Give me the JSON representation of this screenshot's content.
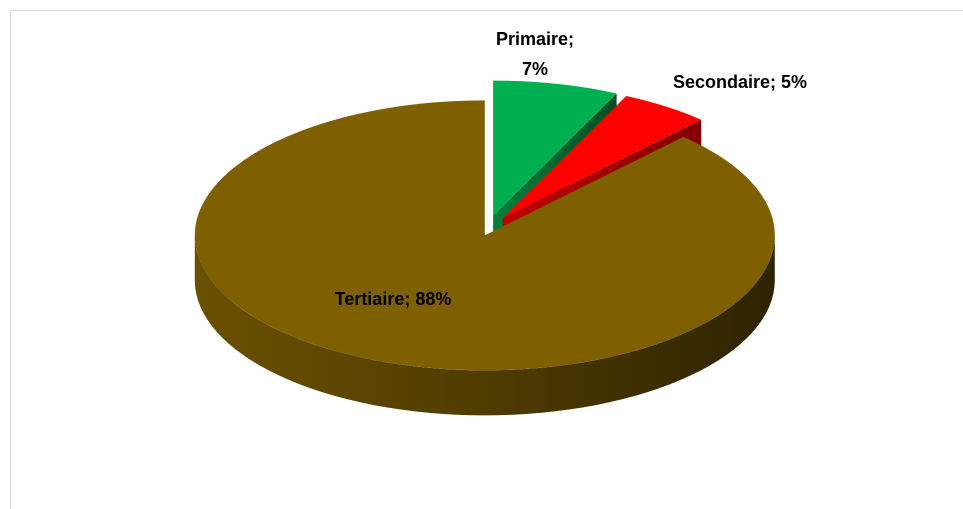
{
  "chart_data": {
    "type": "pie",
    "values": [
      7,
      5,
      88
    ],
    "value_labels": [
      "Primaire; 7%",
      "Secondaire; 5%",
      "Tertiaire; 88%"
    ],
    "colors": [
      "#00b050",
      "#ff0000",
      "#7f6000"
    ]
  }
}
